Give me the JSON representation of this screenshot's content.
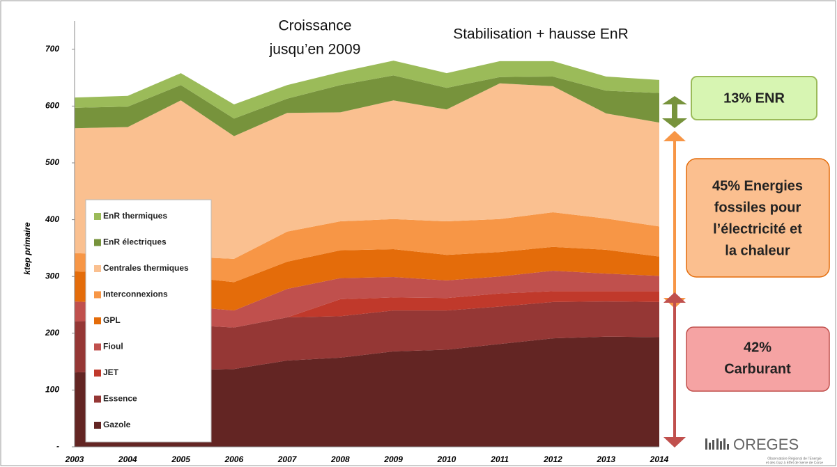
{
  "chart_data": {
    "type": "stacked_area",
    "y_label": "ktep primaire",
    "categories": [
      "2003",
      "2004",
      "2005",
      "2006",
      "2007",
      "2008",
      "2009",
      "2010",
      "2011",
      "2012",
      "2013",
      "2014"
    ],
    "series": [
      {
        "name": "Gazole",
        "color": "#632523",
        "values": [
          131,
          133,
          135,
          137,
          152,
          157,
          168,
          171,
          181,
          191,
          194,
          193
        ]
      },
      {
        "name": "Essence",
        "color": "#953735",
        "values": [
          90,
          89,
          80,
          73,
          76,
          73,
          72,
          69,
          66,
          64,
          62,
          62
        ]
      },
      {
        "name": "JET",
        "color": "#c0392b",
        "values": [
          0,
          0,
          0,
          0,
          0,
          30,
          23,
          22,
          23,
          19,
          18,
          19
        ]
      },
      {
        "name": "Fioul",
        "color": "#c0504d",
        "values": [
          35,
          30,
          33,
          30,
          50,
          37,
          36,
          31,
          30,
          36,
          31,
          27
        ]
      },
      {
        "name": "GPL",
        "color": "#e46c0a",
        "values": [
          53,
          53,
          52,
          50,
          48,
          49,
          49,
          45,
          43,
          42,
          42,
          34
        ]
      },
      {
        "name": "Interconnexions",
        "color": "#f79646",
        "values": [
          32,
          33,
          35,
          41,
          53,
          51,
          53,
          59,
          58,
          61,
          55,
          53
        ]
      },
      {
        "name": "Centrales thermiques",
        "color": "#fac090",
        "values": [
          220,
          225,
          275,
          216,
          209,
          192,
          209,
          197,
          239,
          222,
          185,
          183
        ]
      },
      {
        "name": "EnR électriques",
        "color": "#77933c",
        "values": [
          36,
          36,
          27,
          31,
          25,
          48,
          44,
          38,
          11,
          17,
          40,
          52
        ]
      },
      {
        "name": "EnR thermiques",
        "color": "#9bbb59",
        "values": [
          18,
          19,
          21,
          25,
          24,
          23,
          26,
          26,
          28,
          27,
          25,
          23
        ]
      }
    ],
    "ylim": [
      0,
      750
    ],
    "yticks": [
      {
        "value": 0,
        "label": "-"
      },
      100,
      200,
      300,
      400,
      500,
      600,
      700
    ],
    "annotations": [
      {
        "lines": [
          "Croissance",
          "jusqu’en 2009"
        ]
      },
      {
        "lines": [
          "Stabilisation + hausse EnR"
        ]
      },
      {
        "lines": [
          "13% ENR"
        ]
      },
      {
        "lines": [
          "45% Energies",
          "fossiles pour",
          "l’électricité et",
          "la chaleur"
        ]
      },
      {
        "lines": [
          "42%",
          "Carburant"
        ]
      }
    ],
    "logo": "OREGES",
    "logo_caption": [
      "Observatoire Régional de l’Energie",
      "et des Gaz à Effet de Serre de Corse"
    ]
  }
}
